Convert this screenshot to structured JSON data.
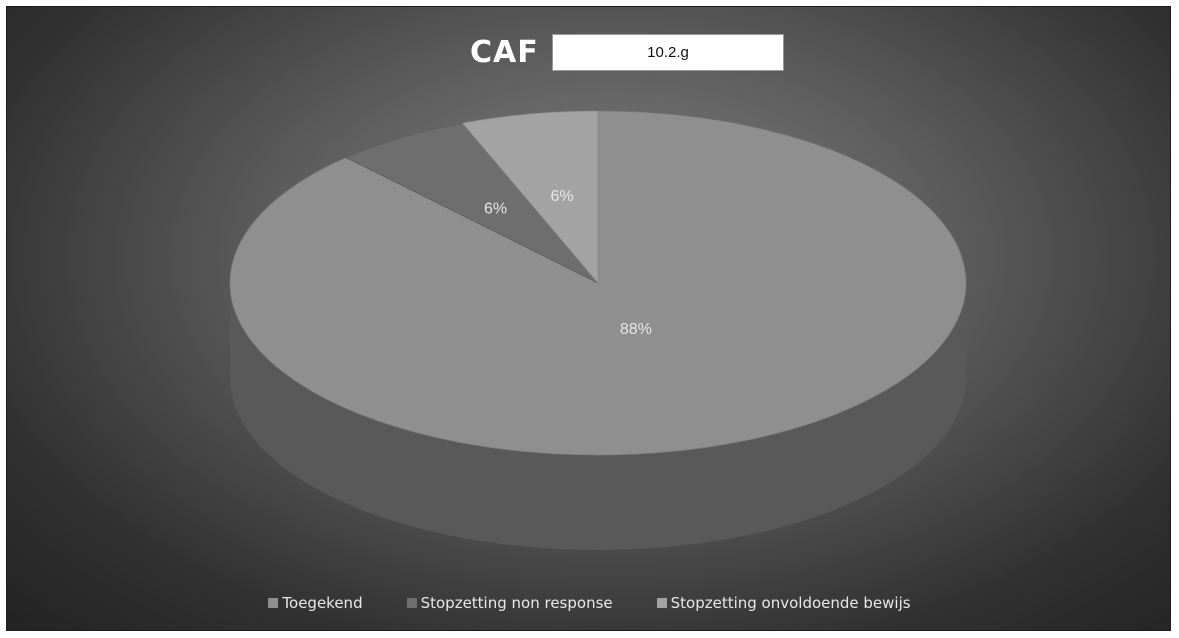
{
  "header": {
    "title": "CAF",
    "box_text": "10.2.g"
  },
  "chart_data": {
    "type": "pie",
    "title": "CAF",
    "slices": [
      {
        "label": "Toegekend",
        "value": 88,
        "display": "88%",
        "color": "#8f8f8f"
      },
      {
        "label": "Stopzetting non response",
        "value": 6,
        "display": "6%",
        "color": "#6e6e6e"
      },
      {
        "label": "Stopzetting onvoldoende bewijs",
        "value": 6,
        "display": "6%",
        "color": "#a3a3a3"
      }
    ],
    "legend_position": "bottom",
    "three_d": true
  }
}
